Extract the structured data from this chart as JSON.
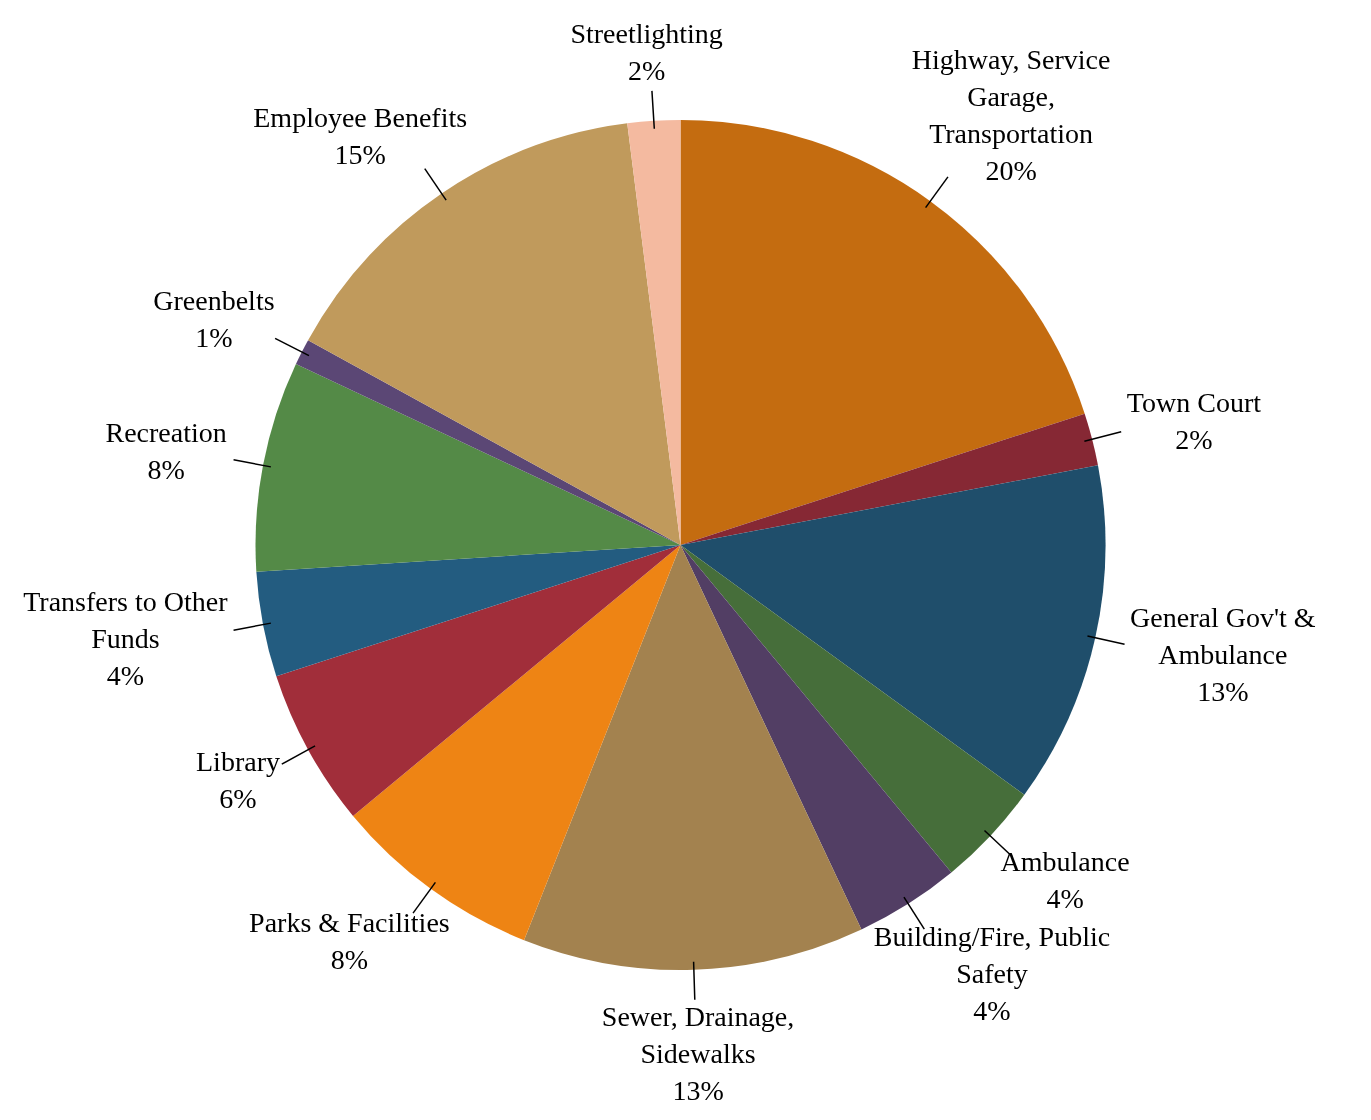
{
  "chart_data": {
    "type": "pie",
    "categories": [
      "Highway, Service Garage, Transportation",
      "Town Court",
      "General Gov't & Ambulance",
      "Ambulance",
      "Building/Fire, Public Safety",
      "Sewer, Drainage, Sidewalks",
      "Parks & Facilities",
      "Library",
      "Transfers to Other Funds",
      "Recreation",
      "Greenbelts",
      "Employee Benefits",
      "Streetlighting"
    ],
    "values": [
      20,
      2,
      13,
      4,
      4,
      13,
      8,
      6,
      4,
      8,
      1,
      15,
      2
    ],
    "value_labels": [
      "20%",
      "2%",
      "13%",
      "4%",
      "4%",
      "13%",
      "8%",
      "6%",
      "4%",
      "8%",
      "1%",
      "15%",
      "2%"
    ],
    "colors": [
      "#c46c10",
      "#862834",
      "#1f4e6b",
      "#466e3a",
      "#523e64",
      "#a3824f",
      "#ee8414",
      "#a12e3a",
      "#235c80",
      "#548a47",
      "#5b4775",
      "#c09a5c",
      "#f4baa0"
    ],
    "legend": false
  }
}
